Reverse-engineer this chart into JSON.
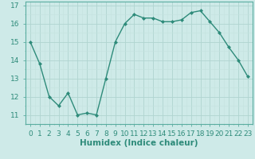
{
  "x": [
    0,
    1,
    2,
    3,
    4,
    5,
    6,
    7,
    8,
    9,
    10,
    11,
    12,
    13,
    14,
    15,
    16,
    17,
    18,
    19,
    20,
    21,
    22,
    23
  ],
  "y": [
    15.0,
    13.8,
    12.0,
    11.5,
    12.2,
    11.0,
    11.1,
    11.0,
    13.0,
    15.0,
    16.0,
    16.5,
    16.3,
    16.3,
    16.1,
    16.1,
    16.2,
    16.6,
    16.7,
    16.1,
    15.5,
    14.7,
    14.0,
    13.1
  ],
  "xlabel": "Humidex (Indice chaleur)",
  "line_color": "#2e8b7a",
  "bg_color": "#ceeae8",
  "grid_major_color": "#b0d4d0",
  "grid_minor_color": "#c4e2df",
  "ylim_min": 10.5,
  "ylim_max": 17.2,
  "xlim_min": -0.5,
  "xlim_max": 23.5,
  "yticks": [
    11,
    12,
    13,
    14,
    15,
    16,
    17
  ],
  "xtick_labels": [
    "0",
    "1",
    "2",
    "3",
    "4",
    "5",
    "6",
    "7",
    "8",
    "9",
    "10",
    "11",
    "12",
    "13",
    "14",
    "15",
    "16",
    "17",
    "18",
    "19",
    "20",
    "21",
    "22",
    "23"
  ],
  "label_fontsize": 7.5,
  "tick_fontsize": 6.5,
  "spine_color": "#5aada0"
}
